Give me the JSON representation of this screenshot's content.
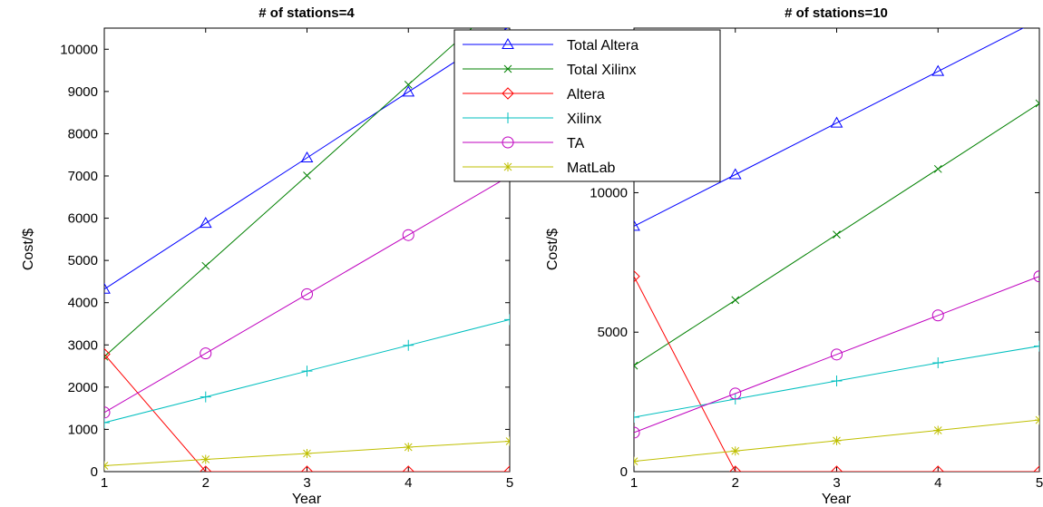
{
  "chart_data": [
    {
      "type": "line",
      "title": "# of stations=4",
      "xlabel": "Year",
      "ylabel": "Cost/$",
      "x": [
        1,
        2,
        3,
        4,
        5
      ],
      "xlim": [
        1,
        5
      ],
      "ylim": [
        0,
        10500
      ],
      "xticks": [
        "1",
        "2",
        "3",
        "4",
        "5"
      ],
      "yticks": [
        0,
        1000,
        2000,
        3000,
        4000,
        5000,
        6000,
        7000,
        8000,
        9000,
        10000
      ],
      "grid": false,
      "series": [
        {
          "name": "Total Altera",
          "color": "#0000ff",
          "marker": "triangle",
          "values": [
            4320,
            5880,
            7430,
            8990,
            10540
          ]
        },
        {
          "name": "Total Xilinx",
          "color": "#008000",
          "marker": "x",
          "values": [
            2720,
            4870,
            7010,
            9160,
            11300
          ]
        },
        {
          "name": "Altera",
          "color": "#ff0000",
          "marker": "diamond",
          "values": [
            2780,
            0,
            0,
            0,
            0
          ]
        },
        {
          "name": "Xilinx",
          "color": "#00bfbf",
          "marker": "plus",
          "values": [
            1160,
            1770,
            2380,
            2990,
            3600
          ]
        },
        {
          "name": "TA",
          "color": "#bf00bf",
          "marker": "circle",
          "values": [
            1400,
            2800,
            4200,
            5600,
            7000
          ]
        },
        {
          "name": "MatLab",
          "color": "#bfbf00",
          "marker": "star",
          "values": [
            140,
            290,
            430,
            580,
            720
          ]
        }
      ]
    },
    {
      "type": "line",
      "title": "# of stations=10",
      "xlabel": "Year",
      "ylabel": "Cost/$",
      "x": [
        1,
        2,
        3,
        4,
        5
      ],
      "xlim": [
        1,
        5
      ],
      "ylim": [
        0,
        15900
      ],
      "xticks": [
        "1",
        "2",
        "3",
        "4",
        "5"
      ],
      "yticks": [
        0,
        5000,
        10000
      ],
      "grid": false,
      "series": [
        {
          "name": "Total Altera",
          "color": "#0000ff",
          "marker": "triangle",
          "values": [
            8800,
            10650,
            12500,
            14350,
            16200
          ]
        },
        {
          "name": "Total Xilinx",
          "color": "#008000",
          "marker": "x",
          "values": [
            3800,
            6150,
            8500,
            10850,
            13200
          ]
        },
        {
          "name": "Altera",
          "color": "#ff0000",
          "marker": "diamond",
          "values": [
            7000,
            0,
            0,
            0,
            0
          ]
        },
        {
          "name": "Xilinx",
          "color": "#00bfbf",
          "marker": "plus",
          "values": [
            1950,
            2600,
            3250,
            3900,
            4500
          ]
        },
        {
          "name": "TA",
          "color": "#bf00bf",
          "marker": "circle",
          "values": [
            1400,
            2800,
            4200,
            5600,
            7000
          ]
        },
        {
          "name": "MatLab",
          "color": "#bfbf00",
          "marker": "star",
          "values": [
            370,
            740,
            1110,
            1480,
            1850
          ]
        }
      ]
    }
  ],
  "legend": {
    "placement": "top-center",
    "entries": [
      "Total Altera",
      "Total Xilinx",
      "Altera",
      "Xilinx",
      "TA",
      "MatLab"
    ]
  }
}
